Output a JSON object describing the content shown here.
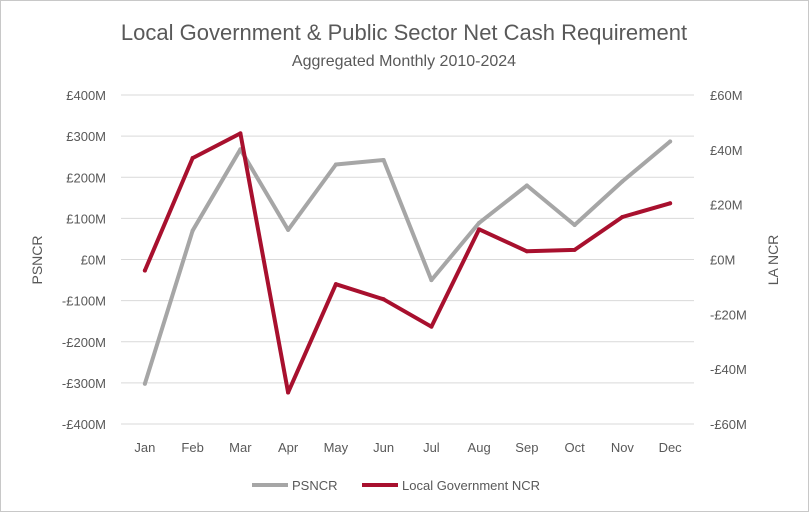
{
  "chart_data": {
    "type": "line",
    "title": "Local Government & Public Sector Net Cash Requirement",
    "subtitle": "Aggregated Monthly 2010-2024",
    "categories": [
      "Jan",
      "Feb",
      "Mar",
      "Apr",
      "May",
      "Jun",
      "Jul",
      "Aug",
      "Sep",
      "Oct",
      "Nov",
      "Dec"
    ],
    "y_left": {
      "label": "PSNCR",
      "range": [
        -400,
        400
      ],
      "ticks": [
        "£400M",
        "£300M",
        "£200M",
        "£100M",
        "£0M",
        "-£100M",
        "-£200M",
        "-£300M",
        "-£400M"
      ]
    },
    "y_right": {
      "label": "LA NCR",
      "range": [
        -60,
        60
      ],
      "ticks": [
        "£60M",
        "£40M",
        "£20M",
        "£0M",
        "-£20M",
        "-£40M",
        "-£60M"
      ]
    },
    "series": [
      {
        "name": "PSNCR",
        "axis": "left",
        "color": "#a6a6a6",
        "values": [
          -302,
          70,
          268,
          72,
          231,
          242,
          -50,
          89,
          180,
          84,
          190,
          287
        ]
      },
      {
        "name": "Local Government NCR",
        "axis": "right",
        "color": "#a8102e",
        "values": [
          -4,
          37,
          46,
          -48.5,
          -9,
          -14.5,
          -24.5,
          11,
          3,
          3.5,
          15.5,
          20.5
        ]
      }
    ],
    "grid": true,
    "legend": "bottom"
  }
}
